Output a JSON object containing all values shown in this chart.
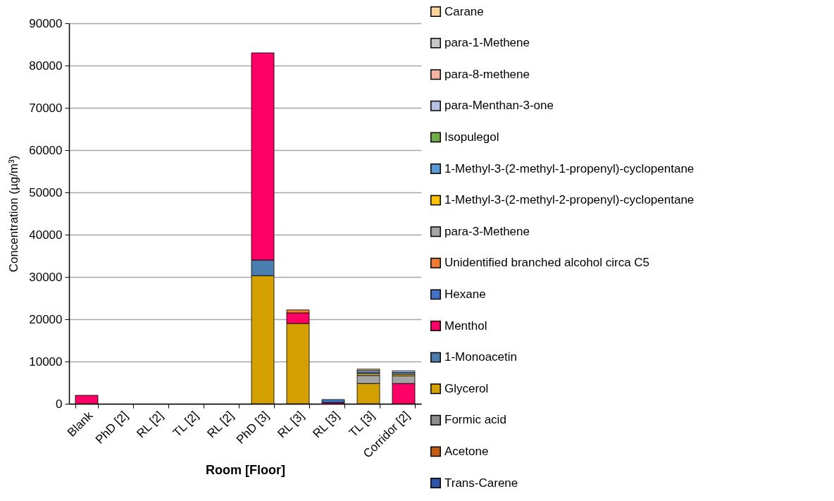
{
  "chart_data": {
    "type": "bar",
    "stacked": true,
    "xlabel": "Room [Floor]",
    "ylabel": "Concentration  (µg/m³)",
    "categories": [
      "Blank",
      "PhD [2]",
      "RL [2]",
      "TL [2]",
      "RL [2]",
      "PhD [3]",
      "RL [3]",
      "RL [3]",
      "TL [3]",
      "Corridor [2]"
    ],
    "ylim": [
      0,
      90000
    ],
    "yticks": [
      0,
      10000,
      20000,
      30000,
      40000,
      50000,
      60000,
      70000,
      80000,
      90000
    ],
    "grid": "y",
    "legend": "right",
    "series": [
      {
        "name": "Trans-Carene",
        "color": "#2f55a4",
        "values": [
          null,
          null,
          null,
          null,
          null,
          null,
          null,
          null,
          null,
          null
        ]
      },
      {
        "name": "Acetone",
        "color": "#c55a11",
        "values": [
          null,
          null,
          null,
          null,
          null,
          null,
          null,
          null,
          null,
          null
        ]
      },
      {
        "name": "Formic acid",
        "color": "#8c8c8c",
        "values": [
          null,
          null,
          null,
          null,
          null,
          null,
          null,
          null,
          null,
          null
        ]
      },
      {
        "name": "Glycerol",
        "color": "#d4a000",
        "values": [
          null,
          null,
          null,
          null,
          null,
          30300,
          19000,
          null,
          4800,
          null
        ]
      },
      {
        "name": "1-Monoacetin",
        "color": "#4a7eb0",
        "values": [
          null,
          null,
          null,
          null,
          null,
          3700,
          null,
          null,
          null,
          null
        ]
      },
      {
        "name": "Menthol",
        "color": "#ff0066",
        "values": [
          2000,
          null,
          null,
          null,
          null,
          49000,
          2500,
          300,
          null,
          4800
        ]
      },
      {
        "name": "Hexane",
        "color": "#4472c4",
        "values": [
          null,
          null,
          null,
          null,
          null,
          null,
          null,
          700,
          null,
          null
        ]
      },
      {
        "name": "Unidentified branched alcohol circa C5",
        "color": "#ed7d31",
        "values": [
          null,
          null,
          null,
          null,
          null,
          null,
          700,
          null,
          null,
          null
        ]
      },
      {
        "name": "para-3-Methene",
        "color": "#a5a5a5",
        "values": [
          null,
          null,
          null,
          null,
          null,
          null,
          null,
          null,
          1900,
          1800
        ]
      },
      {
        "name": "1-Methyl-3-(2-methyl-2-propenyl)-cyclopentane",
        "color": "#ffc000",
        "values": [
          null,
          null,
          null,
          null,
          null,
          null,
          null,
          null,
          400,
          400
        ]
      },
      {
        "name": "1-Methyl-3-(2-methyl-1-propenyl)-cyclopentane",
        "color": "#5b9bd5",
        "values": [
          null,
          null,
          null,
          null,
          null,
          null,
          null,
          null,
          400,
          400
        ]
      },
      {
        "name": "Isopulegol",
        "color": "#70ad47",
        "values": [
          null,
          null,
          null,
          null,
          null,
          null,
          null,
          null,
          null,
          null
        ]
      },
      {
        "name": "para-Menthan-3-one",
        "color": "#b4c0e4",
        "values": [
          null,
          null,
          null,
          null,
          null,
          null,
          null,
          null,
          400,
          400
        ]
      },
      {
        "name": "para-8-methene",
        "color": "#f4b6a0",
        "values": [
          null,
          null,
          null,
          null,
          null,
          null,
          null,
          null,
          null,
          null
        ]
      },
      {
        "name": "para-1-Methene",
        "color": "#c8c8c8",
        "values": [
          null,
          null,
          null,
          null,
          null,
          null,
          null,
          null,
          null,
          null
        ]
      },
      {
        "name": "Carane",
        "color": "#ffd699",
        "values": [
          null,
          null,
          null,
          null,
          null,
          null,
          null,
          null,
          300,
          null
        ]
      }
    ]
  }
}
